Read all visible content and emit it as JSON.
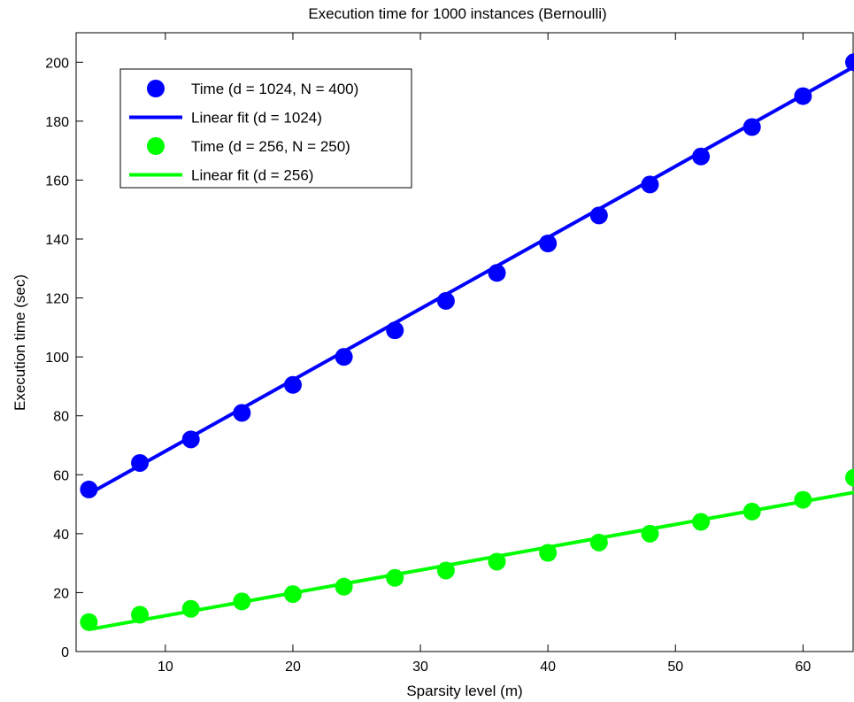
{
  "chart_data": {
    "type": "scatter",
    "title": "Execution time for 1000 instances (Bernoulli)",
    "xlabel": "Sparsity level (m)",
    "ylabel": "Execution time (sec)",
    "xlim": [
      3,
      64
    ],
    "ylim": [
      0,
      210
    ],
    "xticks": [
      10,
      20,
      30,
      40,
      50,
      60
    ],
    "yticks": [
      0,
      20,
      40,
      60,
      80,
      100,
      120,
      140,
      160,
      180,
      200
    ],
    "grid": false,
    "legend_position": "top-left",
    "series": [
      {
        "name": "Time (d = 1024, N = 400)",
        "kind": "markers",
        "color": "#0000ff",
        "x": [
          4,
          8,
          12,
          16,
          20,
          24,
          28,
          32,
          36,
          40,
          44,
          48,
          52,
          56,
          60,
          64
        ],
        "y": [
          55,
          64,
          72,
          81,
          90.5,
          100,
          109,
          119,
          128.5,
          138.5,
          148,
          158.5,
          168,
          178,
          188.5,
          200
        ]
      },
      {
        "name": "Linear fit (d = 1024)",
        "kind": "line",
        "color": "#0000ff",
        "x": [
          4,
          64
        ],
        "y": [
          53.5,
          198.5
        ]
      },
      {
        "name": "Time (d = 256, N = 250)",
        "kind": "markers",
        "color": "#00ff00",
        "x": [
          4,
          8,
          12,
          16,
          20,
          24,
          28,
          32,
          36,
          40,
          44,
          48,
          52,
          56,
          60,
          64
        ],
        "y": [
          10,
          12.5,
          14.5,
          17,
          19.5,
          22,
          25,
          27.5,
          30.5,
          33.5,
          37,
          40,
          44,
          47.5,
          51.5,
          59
        ]
      },
      {
        "name": "Linear fit (d = 256)",
        "kind": "line",
        "color": "#00ff00",
        "x": [
          4,
          64
        ],
        "y": [
          7.5,
          54
        ]
      }
    ]
  }
}
